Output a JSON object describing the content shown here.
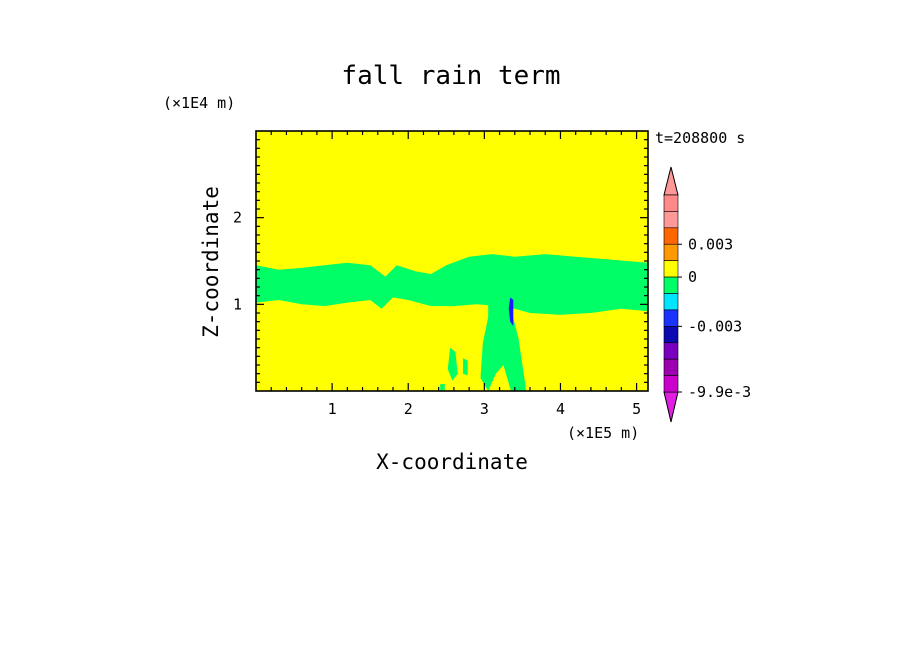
{
  "chart_data": {
    "type": "heatmap",
    "title": "fall rain term",
    "xlabel": "X-coordinate",
    "ylabel": "Z-coordinate",
    "x_unit_label": "(×1E5 m)",
    "y_unit_label": "(×1E4 m)",
    "time_label": "t=208800 s",
    "xlim": [
      0,
      5.15
    ],
    "ylim": [
      0,
      3.0
    ],
    "x_ticks": [
      1,
      2,
      3,
      4,
      5
    ],
    "y_ticks": [
      1,
      2
    ],
    "background_level": "0",
    "background_color": "#ffff00",
    "regions": [
      {
        "level": "small negative",
        "color": "#00ff66",
        "description_points": [
          [
            0.0,
            1.45
          ],
          [
            0.3,
            1.4
          ],
          [
            0.6,
            1.42
          ],
          [
            0.9,
            1.45
          ],
          [
            1.2,
            1.48
          ],
          [
            1.5,
            1.45
          ],
          [
            1.7,
            1.32
          ],
          [
            1.85,
            1.45
          ],
          [
            2.1,
            1.38
          ],
          [
            2.3,
            1.35
          ],
          [
            2.5,
            1.45
          ],
          [
            2.8,
            1.55
          ],
          [
            3.1,
            1.58
          ],
          [
            3.4,
            1.55
          ],
          [
            3.8,
            1.58
          ],
          [
            4.2,
            1.55
          ],
          [
            4.6,
            1.52
          ],
          [
            5.15,
            1.48
          ],
          [
            5.15,
            0.92
          ],
          [
            4.8,
            0.95
          ],
          [
            4.4,
            0.9
          ],
          [
            4.0,
            0.88
          ],
          [
            3.6,
            0.9
          ],
          [
            3.4,
            0.95
          ],
          [
            3.2,
            0.98
          ],
          [
            2.9,
            1.0
          ],
          [
            2.6,
            0.98
          ],
          [
            2.3,
            0.98
          ],
          [
            2.0,
            1.05
          ],
          [
            1.8,
            1.08
          ],
          [
            1.65,
            0.95
          ],
          [
            1.5,
            1.05
          ],
          [
            1.2,
            1.02
          ],
          [
            0.9,
            0.98
          ],
          [
            0.6,
            1.0
          ],
          [
            0.3,
            1.05
          ],
          [
            0.0,
            1.02
          ]
        ]
      },
      {
        "level": "small negative",
        "color": "#00ff66",
        "description_points": [
          [
            3.05,
            1.05
          ],
          [
            3.2,
            1.05
          ],
          [
            3.35,
            0.95
          ],
          [
            3.45,
            0.6
          ],
          [
            3.55,
            0.0
          ],
          [
            3.35,
            0.0
          ],
          [
            3.25,
            0.3
          ],
          [
            3.15,
            0.2
          ],
          [
            3.05,
            0.0
          ],
          [
            2.95,
            0.15
          ],
          [
            2.98,
            0.55
          ],
          [
            3.05,
            0.85
          ]
        ]
      },
      {
        "level": "small negative",
        "color": "#00ff66",
        "description_points": [
          [
            2.55,
            0.5
          ],
          [
            2.62,
            0.45
          ],
          [
            2.65,
            0.2
          ],
          [
            2.58,
            0.12
          ],
          [
            2.52,
            0.25
          ]
        ]
      },
      {
        "level": "small negative",
        "color": "#00ff66",
        "description_points": [
          [
            2.72,
            0.38
          ],
          [
            2.78,
            0.35
          ],
          [
            2.78,
            0.18
          ],
          [
            2.72,
            0.2
          ]
        ]
      },
      {
        "level": "small negative",
        "color": "#00ff66",
        "description_points": [
          [
            2.42,
            0.08
          ],
          [
            2.48,
            0.08
          ],
          [
            2.48,
            0.0
          ],
          [
            2.42,
            0.0
          ]
        ]
      },
      {
        "level": "-0.003",
        "color": "#1a1aff",
        "description_points": [
          [
            3.34,
            1.08
          ],
          [
            3.38,
            1.05
          ],
          [
            3.38,
            0.75
          ],
          [
            3.34,
            0.8
          ],
          [
            3.32,
            0.95
          ]
        ]
      }
    ],
    "colorbar": {
      "levels": [
        {
          "value_label": "",
          "color": "#ff8888"
        },
        {
          "value_label": "",
          "color": "#ff9999"
        },
        {
          "value_label": "0.003",
          "color": "#ff6600"
        },
        {
          "value_label": "",
          "color": "#ff9900"
        },
        {
          "value_label": "0",
          "color": "#ffff00"
        },
        {
          "value_label": "",
          "color": "#00ff66"
        },
        {
          "value_label": "",
          "color": "#00e5ff"
        },
        {
          "value_label": "-0.003",
          "color": "#1a33ff"
        },
        {
          "value_label": "",
          "color": "#0a0ab0"
        },
        {
          "value_label": "",
          "color": "#7a00c0"
        },
        {
          "value_label": "",
          "color": "#9c00b0"
        },
        {
          "value_label": "-9.9e-3",
          "color": "#cc00cc"
        }
      ],
      "top_triangle_color": "#ff9999",
      "bottom_triangle_color": "#e020e0"
    }
  }
}
